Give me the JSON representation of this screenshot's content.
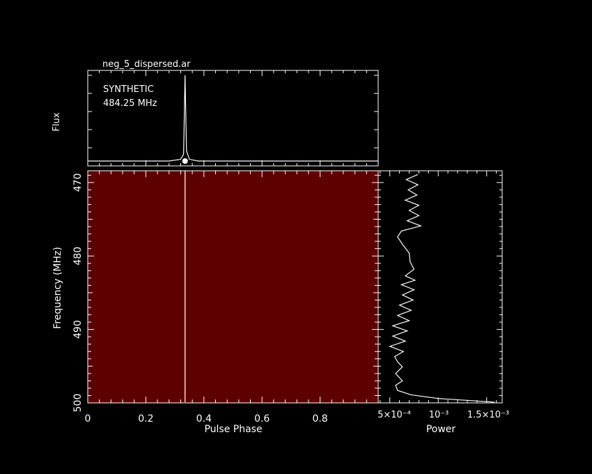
{
  "title": "neg_5_dispersed.ar",
  "colors": {
    "background": "#000000",
    "foreground": "#ffffff",
    "waterfall": "#5e0000",
    "pulse_line": "#ffe6c8"
  },
  "chart_data": [
    {
      "type": "line",
      "name": "profile",
      "ylabel": "Flux",
      "annotations": [
        "SYNTHETIC",
        "484.25 MHz"
      ],
      "xlim": [
        0,
        1
      ],
      "x": [
        0,
        0.28,
        0.32,
        0.33,
        0.335,
        0.34,
        0.35,
        0.38,
        1
      ],
      "y": [
        0,
        0,
        0.02,
        0.08,
        1,
        0.12,
        0.02,
        0,
        0
      ]
    },
    {
      "type": "heatmap",
      "name": "waterfall",
      "xlabel": "Pulse Phase",
      "ylabel": "Frequency (MHz)",
      "xlim": [
        0,
        1.0
      ],
      "ylim": [
        468.4,
        500
      ],
      "y_inverted": true,
      "x_ticks": [
        "0",
        "0.2",
        "0.4",
        "0.6",
        "0.8"
      ],
      "y_ticks": [
        "470",
        "480",
        "490",
        "500"
      ],
      "pulse_phase": 0.335
    },
    {
      "type": "line",
      "name": "bandpass",
      "xlabel": "Power",
      "x_ticks": [
        "5×10⁻⁴",
        "10⁻³",
        "1.5×10⁻³"
      ],
      "xlim": [
        0.00038,
        0.00166
      ],
      "ylim": [
        468.4,
        500
      ],
      "freq": [
        468.9,
        469.6,
        470.3,
        471,
        471.7,
        472.4,
        473.1,
        473.8,
        474.5,
        475.2,
        475.9,
        476.6,
        477.4,
        478.4,
        479.6,
        480.8,
        481.8,
        482.7,
        483.3,
        483.9,
        484.6,
        485.3,
        486,
        486.7,
        487.4,
        488.1,
        488.8,
        489.5,
        490.2,
        490.9,
        491.6,
        492.3,
        493,
        493.7,
        494.4,
        495.1,
        496,
        497,
        497.6,
        498.3,
        498.9,
        499.4,
        499.7,
        499.9
      ],
      "power": [
        0.00079,
        0.00067,
        0.00079,
        0.00069,
        0.00078,
        0.00066,
        0.0008,
        0.0007,
        0.0008,
        0.00068,
        0.00082,
        0.00062,
        0.00058,
        0.00063,
        0.0007,
        0.00071,
        0.00075,
        0.00066,
        0.00076,
        0.00062,
        0.00075,
        0.00063,
        0.00074,
        0.0006,
        0.00072,
        0.00058,
        0.0007,
        0.00053,
        0.00068,
        0.00053,
        0.00066,
        0.0005,
        0.00064,
        0.00055,
        0.00058,
        0.00063,
        0.00056,
        0.00063,
        0.00056,
        0.00058,
        0.00072,
        0.001,
        0.00135,
        0.00158
      ]
    }
  ]
}
